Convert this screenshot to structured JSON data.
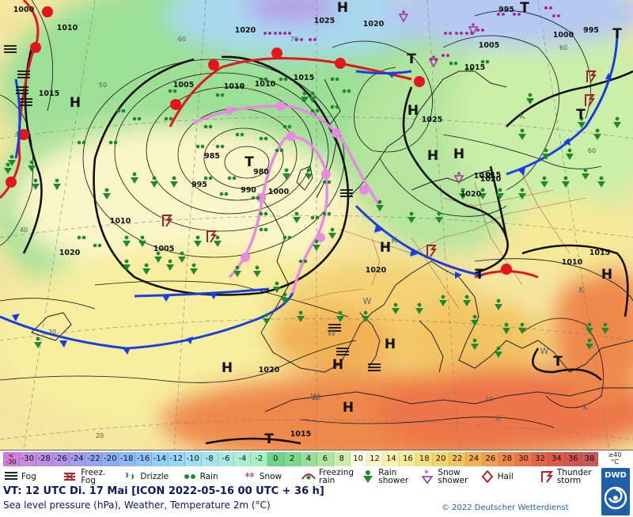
{
  "map": {
    "pressure_labels": [
      "1000",
      "1010",
      "1010",
      "1015",
      "1020",
      "1025",
      "1020",
      "995",
      "1020",
      "1015",
      "1000",
      "995",
      "1005",
      "1010",
      "1015",
      "1005",
      "1010",
      "1015",
      "1025",
      "985",
      "980",
      "995",
      "990",
      "1000",
      "1020",
      "1015",
      "1010",
      "1020",
      "1005",
      "1020",
      "1015",
      "1020",
      "1015"
    ],
    "centers": [
      "H",
      "T",
      "T",
      "H",
      "H",
      "T",
      "H",
      "T",
      "T",
      "H",
      "T",
      "H",
      "H",
      "H",
      "H",
      "H",
      "H",
      "T",
      "T"
    ],
    "warm_cold_marks": [
      "W",
      "W",
      "W",
      "W",
      "K",
      "K",
      "K",
      "K",
      "K"
    ],
    "temp_labels": [
      "60",
      "50",
      "40",
      "40",
      "30",
      "20",
      "60",
      "60",
      "70",
      "20",
      "10"
    ]
  },
  "legend": {
    "colorbar": [
      {
        "label": "<\n-30",
        "color": "#d37bd6"
      },
      {
        "label": "-30",
        "color": "#c98bde"
      },
      {
        "label": "-28",
        "color": "#bc8ee4"
      },
      {
        "label": "-26",
        "color": "#b094e8"
      },
      {
        "label": "-24",
        "color": "#a49cec"
      },
      {
        "label": "-22",
        "color": "#98a4ef"
      },
      {
        "label": "-20",
        "color": "#8fadf2"
      },
      {
        "label": "-18",
        "color": "#8fb8f5"
      },
      {
        "label": "-16",
        "color": "#8fc3f7"
      },
      {
        "label": "-14",
        "color": "#93cef8"
      },
      {
        "label": "-12",
        "color": "#99d7f8"
      },
      {
        "label": "-10",
        "color": "#a1def5"
      },
      {
        "label": "-8",
        "color": "#a6e4ee"
      },
      {
        "label": "-6",
        "color": "#a9e9e2"
      },
      {
        "label": "-4",
        "color": "#aaeed4"
      },
      {
        "label": "-2",
        "color": "#a8f0c2"
      },
      {
        "label": "0",
        "color": "#6fd48a"
      },
      {
        "label": "2",
        "color": "#7ed98e"
      },
      {
        "label": "4",
        "color": "#97df96"
      },
      {
        "label": "6",
        "color": "#b0e69f"
      },
      {
        "label": "8",
        "color": "#cbeea9"
      },
      {
        "label": "10",
        "color": "#fdfbe6"
      },
      {
        "label": "12",
        "color": "#fbf6c8"
      },
      {
        "label": "14",
        "color": "#f8f1b0"
      },
      {
        "label": "16",
        "color": "#f6ea96"
      },
      {
        "label": "18",
        "color": "#f4e07d"
      },
      {
        "label": "20",
        "color": "#f3d46b"
      },
      {
        "label": "22",
        "color": "#f2c45c"
      },
      {
        "label": "24",
        "color": "#f2b152"
      },
      {
        "label": "26",
        "color": "#f19d4e"
      },
      {
        "label": "28",
        "color": "#ef894b"
      },
      {
        "label": "30",
        "color": "#ec7649"
      },
      {
        "label": "32",
        "color": "#e66548"
      },
      {
        "label": "34",
        "color": "#de5a4a"
      },
      {
        "label": "36",
        "color": "#d4554f"
      },
      {
        "label": "38",
        "color": "#c85a5a"
      }
    ],
    "unit_top": "≥40",
    "unit": "°C",
    "symbols": [
      {
        "icon": "fog-icon",
        "label": "Fog"
      },
      {
        "icon": "freezing-fog-icon",
        "label": "Freez.\nFog"
      },
      {
        "icon": "drizzle-icon",
        "label": "Drizzle"
      },
      {
        "icon": "rain-icon",
        "label": "Rain"
      },
      {
        "icon": "snow-icon",
        "label": "Snow"
      },
      {
        "icon": "freezing-rain-icon",
        "label": "Freezing\nrain"
      },
      {
        "icon": "rain-shower-icon",
        "label": "Rain\nshower"
      },
      {
        "icon": "snow-shower-icon",
        "label": "Snow\nshower"
      },
      {
        "icon": "hail-icon",
        "label": "Hail"
      },
      {
        "icon": "thunderstorm-icon",
        "label": "Thunder\nstorm"
      }
    ],
    "valid_time": "VT: 12 UTC Di.  17 Mai [ICON 2022-05-16  00 UTC + 36 h]",
    "subtitle": "Sea level pressure (hPa), Weather, Temperature 2m (°C)",
    "copyright": "© 2022 Deutscher Wetterdienst",
    "logo_text": "DWD"
  }
}
